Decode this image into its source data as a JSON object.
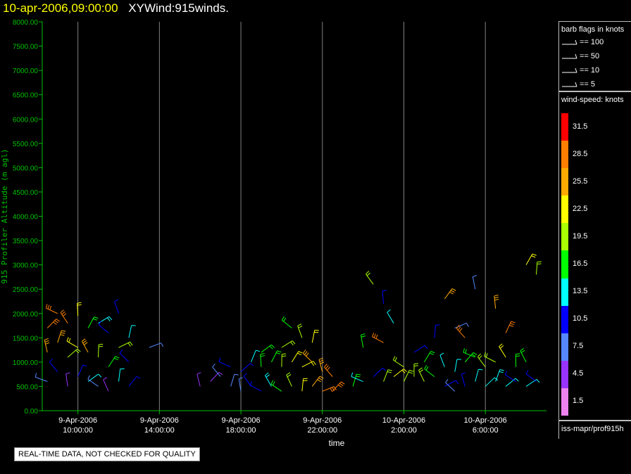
{
  "title": {
    "date": "10-apr-2006,09:00:00",
    "name": "XYWind:915winds."
  },
  "notice": "REAL-TIME DATA, NOT CHECKED FOR QUALITY",
  "colors": {
    "axis": "#00c000",
    "grid": "#808080",
    "background": "#000000",
    "text": "#ffffff",
    "title_date": "#ffff00"
  },
  "legend": {
    "barb_title": "barb flags in knots",
    "barbs": [
      {
        "label": "== 100",
        "kind": "pennant-large"
      },
      {
        "label": "== 50",
        "kind": "pennant"
      },
      {
        "label": "== 10",
        "kind": "full-barb"
      },
      {
        "label": "== 5",
        "kind": "half-barb"
      }
    ],
    "speed_title": "wind-speed: knots",
    "colorbar": [
      {
        "label": "31.5",
        "color": "#ff0000"
      },
      {
        "label": "28.5",
        "color": "#ff7f00"
      },
      {
        "label": "25.5",
        "color": "#ffaa00"
      },
      {
        "label": "22.5",
        "color": "#ffff00"
      },
      {
        "label": "19.5",
        "color": "#aaff00"
      },
      {
        "label": "16.5",
        "color": "#00ff00"
      },
      {
        "label": "13.5",
        "color": "#00ffff"
      },
      {
        "label": "10.5",
        "color": "#0000ff"
      },
      {
        "label": "7.5",
        "color": "#5588ff"
      },
      {
        "label": "4.5",
        "color": "#9933ff"
      },
      {
        "label": "1.5",
        "color": "#ee82ee"
      }
    ],
    "source": "iss-mapr/prof915h"
  },
  "chart_data": {
    "type": "scatter",
    "title": "10-apr-2006,09:00:00 XYWind:915winds.",
    "xlabel": "time",
    "ylabel": "915 Profiler Altitude (m agl)",
    "ylim": [
      0,
      8000
    ],
    "xlim": [
      "2006-04-09T08:15:00",
      "2006-04-10T09:00:00"
    ],
    "yticks": [
      "0.00",
      "500.00",
      "1000.00",
      "1500.00",
      "2000.00",
      "2500.00",
      "3000.00",
      "3500.00",
      "4000.00",
      "4500.00",
      "5000.00",
      "5500.00",
      "6000.00",
      "6500.00",
      "7000.00",
      "7500.00",
      "8000.00"
    ],
    "xticks": [
      {
        "t": "2006-04-09T10:00:00",
        "line1": "9-Apr-2006",
        "line2": "10:00:00"
      },
      {
        "t": "2006-04-09T14:00:00",
        "line1": "9-Apr-2006",
        "line2": "14:00:00"
      },
      {
        "t": "2006-04-09T18:00:00",
        "line1": "9-Apr-2006",
        "line2": "18:00:00"
      },
      {
        "t": "2006-04-09T22:00:00",
        "line1": "9-Apr-2006",
        "line2": "22:00:00"
      },
      {
        "t": "2006-04-10T02:00:00",
        "line1": "10-Apr-2006",
        "line2": "2:00:00"
      },
      {
        "t": "2006-04-10T06:00:00",
        "line1": "10-Apr-2006",
        "line2": "6:00:00"
      }
    ],
    "grid": "vertical",
    "legend_position": "right",
    "series": [
      {
        "name": "wind barbs (approx.)",
        "points": [
          [
            "2006-04-09T08:30:00",
            600,
            8.0
          ],
          [
            "2006-04-09T08:30:00",
            1200,
            27.0
          ],
          [
            "2006-04-09T08:30:00",
            1700,
            30.0
          ],
          [
            "2006-04-09T09:00:00",
            800,
            12.0
          ],
          [
            "2006-04-09T09:00:00",
            1400,
            25.0
          ],
          [
            "2006-04-09T09:00:00",
            2000,
            30.0
          ],
          [
            "2006-04-09T09:30:00",
            500,
            6.0
          ],
          [
            "2006-04-09T09:30:00",
            1100,
            20.0
          ],
          [
            "2006-04-09T09:30:00",
            1800,
            29.0
          ],
          [
            "2006-04-09T10:00:00",
            700,
            10.0
          ],
          [
            "2006-04-09T10:00:00",
            1300,
            22.0
          ],
          [
            "2006-04-09T10:00:00",
            1950,
            24.0
          ],
          [
            "2006-04-09T10:30:00",
            600,
            14.0
          ],
          [
            "2006-04-09T10:30:00",
            1200,
            26.0
          ],
          [
            "2006-04-09T10:30:00",
            1700,
            18.0
          ],
          [
            "2006-04-09T11:00:00",
            500,
            9.0
          ],
          [
            "2006-04-09T11:00:00",
            1100,
            21.0
          ],
          [
            "2006-04-09T11:00:00",
            1800,
            15.0
          ],
          [
            "2006-04-09T11:30:00",
            400,
            5.0
          ],
          [
            "2006-04-09T11:30:00",
            900,
            17.0
          ],
          [
            "2006-04-09T11:30:00",
            1600,
            12.0
          ],
          [
            "2006-04-09T12:00:00",
            600,
            13.0
          ],
          [
            "2006-04-09T12:00:00",
            1300,
            19.0
          ],
          [
            "2006-04-09T12:00:00",
            2000,
            11.0
          ],
          [
            "2006-04-09T12:30:00",
            500,
            10.0
          ],
          [
            "2006-04-09T12:30:00",
            1000,
            12.0
          ],
          [
            "2006-04-09T12:30:00",
            1500,
            14.0
          ],
          [
            "2006-04-09T13:30:00",
            1300,
            8.0
          ],
          [
            "2006-04-09T16:00:00",
            500,
            4.0
          ],
          [
            "2006-04-09T16:30:00",
            600,
            6.0
          ],
          [
            "2006-04-09T17:00:00",
            700,
            8.0
          ],
          [
            "2006-04-09T17:30:00",
            500,
            9.0
          ],
          [
            "2006-04-09T17:30:00",
            900,
            11.0
          ],
          [
            "2006-04-09T18:00:00",
            400,
            7.0
          ],
          [
            "2006-04-09T18:00:00",
            800,
            12.0
          ],
          [
            "2006-04-09T18:30:00",
            500,
            10.0
          ],
          [
            "2006-04-09T18:30:00",
            1000,
            14.0
          ],
          [
            "2006-04-09T19:00:00",
            400,
            12.0
          ],
          [
            "2006-04-09T19:00:00",
            900,
            16.0
          ],
          [
            "2006-04-09T19:00:00",
            1200,
            17.0
          ],
          [
            "2006-04-09T19:30:00",
            500,
            15.0
          ],
          [
            "2006-04-09T19:30:00",
            1000,
            18.0
          ],
          [
            "2006-04-09T20:00:00",
            400,
            17.0
          ],
          [
            "2006-04-09T20:00:00",
            900,
            20.0
          ],
          [
            "2006-04-09T20:00:00",
            1300,
            19.0
          ],
          [
            "2006-04-09T20:30:00",
            500,
            19.0
          ],
          [
            "2006-04-09T20:30:00",
            1000,
            22.0
          ],
          [
            "2006-04-09T20:30:00",
            1700,
            18.0
          ],
          [
            "2006-04-09T21:00:00",
            400,
            22.0
          ],
          [
            "2006-04-09T21:00:00",
            900,
            24.0
          ],
          [
            "2006-04-09T21:00:00",
            1500,
            20.0
          ],
          [
            "2006-04-09T21:30:00",
            500,
            25.0
          ],
          [
            "2006-04-09T21:30:00",
            1000,
            26.0
          ],
          [
            "2006-04-09T21:30:00",
            1400,
            22.0
          ],
          [
            "2006-04-09T22:00:00",
            400,
            28.0
          ],
          [
            "2006-04-09T22:00:00",
            800,
            27.0
          ],
          [
            "2006-04-09T22:30:00",
            400,
            30.0
          ],
          [
            "2006-04-09T22:30:00",
            700,
            28.0
          ],
          [
            "2006-04-09T23:30:00",
            500,
            16.0
          ],
          [
            "2006-04-10T00:00:00",
            600,
            14.0
          ],
          [
            "2006-04-10T00:00:00",
            1300,
            17.0
          ],
          [
            "2006-04-10T00:30:00",
            700,
            10.0
          ],
          [
            "2006-04-10T00:30:00",
            2600,
            20.0
          ],
          [
            "2006-04-10T01:00:00",
            600,
            20.0
          ],
          [
            "2006-04-10T01:00:00",
            1400,
            28.0
          ],
          [
            "2006-04-10T01:00:00",
            2200,
            12.0
          ],
          [
            "2006-04-10T01:30:00",
            700,
            22.0
          ],
          [
            "2006-04-10T01:30:00",
            1800,
            13.0
          ],
          [
            "2006-04-10T02:00:00",
            600,
            21.0
          ],
          [
            "2006-04-10T02:00:00",
            900,
            19.0
          ],
          [
            "2006-04-10T02:30:00",
            700,
            20.0
          ],
          [
            "2006-04-10T02:30:00",
            1200,
            12.0
          ],
          [
            "2006-04-10T03:00:00",
            600,
            19.0
          ],
          [
            "2006-04-10T03:00:00",
            1000,
            18.0
          ],
          [
            "2006-04-10T03:30:00",
            700,
            17.0
          ],
          [
            "2006-04-10T03:30:00",
            1500,
            10.0
          ],
          [
            "2006-04-10T04:00:00",
            500,
            12.0
          ],
          [
            "2006-04-10T04:00:00",
            900,
            14.0
          ],
          [
            "2006-04-10T04:00:00",
            2300,
            26.0
          ],
          [
            "2006-04-10T04:30:00",
            400,
            9.0
          ],
          [
            "2006-04-10T04:30:00",
            800,
            13.0
          ],
          [
            "2006-04-10T04:30:00",
            1700,
            8.0
          ],
          [
            "2006-04-10T05:00:00",
            500,
            11.0
          ],
          [
            "2006-04-10T05:00:00",
            1000,
            16.0
          ],
          [
            "2006-04-10T05:00:00",
            1500,
            30.0
          ],
          [
            "2006-04-10T05:30:00",
            600,
            13.0
          ],
          [
            "2006-04-10T05:30:00",
            1100,
            18.0
          ],
          [
            "2006-04-10T05:30:00",
            2500,
            7.0
          ],
          [
            "2006-04-10T06:00:00",
            500,
            14.0
          ],
          [
            "2006-04-10T06:00:00",
            900,
            20.0
          ],
          [
            "2006-04-10T06:30:00",
            600,
            15.0
          ],
          [
            "2006-04-10T06:30:00",
            1000,
            19.0
          ],
          [
            "2006-04-10T06:30:00",
            2100,
            27.0
          ],
          [
            "2006-04-10T07:00:00",
            500,
            14.0
          ],
          [
            "2006-04-10T07:00:00",
            1100,
            22.0
          ],
          [
            "2006-04-10T07:00:00",
            1600,
            29.0
          ],
          [
            "2006-04-10T07:30:00",
            600,
            12.0
          ],
          [
            "2006-04-10T07:30:00",
            900,
            16.0
          ],
          [
            "2006-04-10T08:00:00",
            500,
            13.0
          ],
          [
            "2006-04-10T08:00:00",
            1000,
            18.0
          ],
          [
            "2006-04-10T08:00:00",
            3000,
            24.0
          ],
          [
            "2006-04-10T08:30:00",
            600,
            12.0
          ],
          [
            "2006-04-10T08:30:00",
            2800,
            21.0
          ]
        ]
      }
    ]
  }
}
